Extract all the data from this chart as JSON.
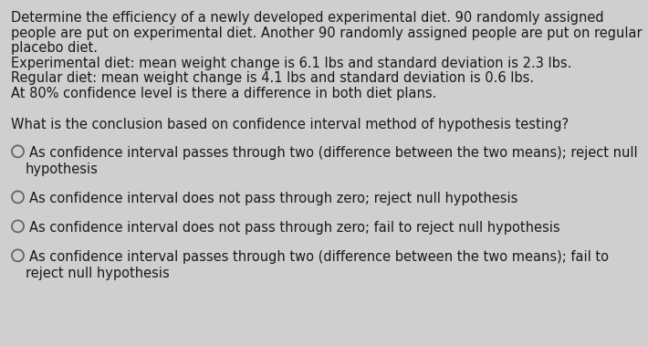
{
  "background_color": "#d0cfcf",
  "text_color": "#1a1a1a",
  "font_size": 10.5,
  "paragraph_lines": [
    "Determine the efficiency of a newly developed experimental diet. 90 randomly assigned",
    "people are put on experimental diet. Another 90 randomly assigned people are put on regular",
    "placebo diet.",
    "Experimental diet: mean weight change is 6.1 lbs and standard deviation is 2.3 lbs.",
    "Regular diet: mean weight change is 4.1 lbs and standard deviation is 0.6 lbs.",
    "At 80% confidence level is there a difference in both diet plans."
  ],
  "question_text": "What is the conclusion based on confidence interval method of hypothesis testing?",
  "options": [
    [
      "As confidence interval passes through two (difference between the two means); reject null",
      "hypothesis"
    ],
    [
      "As confidence interval does not pass through zero; reject null hypothesis"
    ],
    [
      "As confidence interval does not pass through zero; fail to reject null hypothesis"
    ],
    [
      "As confidence interval passes through two (difference between the two means); fail to",
      "reject null hypothesis"
    ]
  ]
}
